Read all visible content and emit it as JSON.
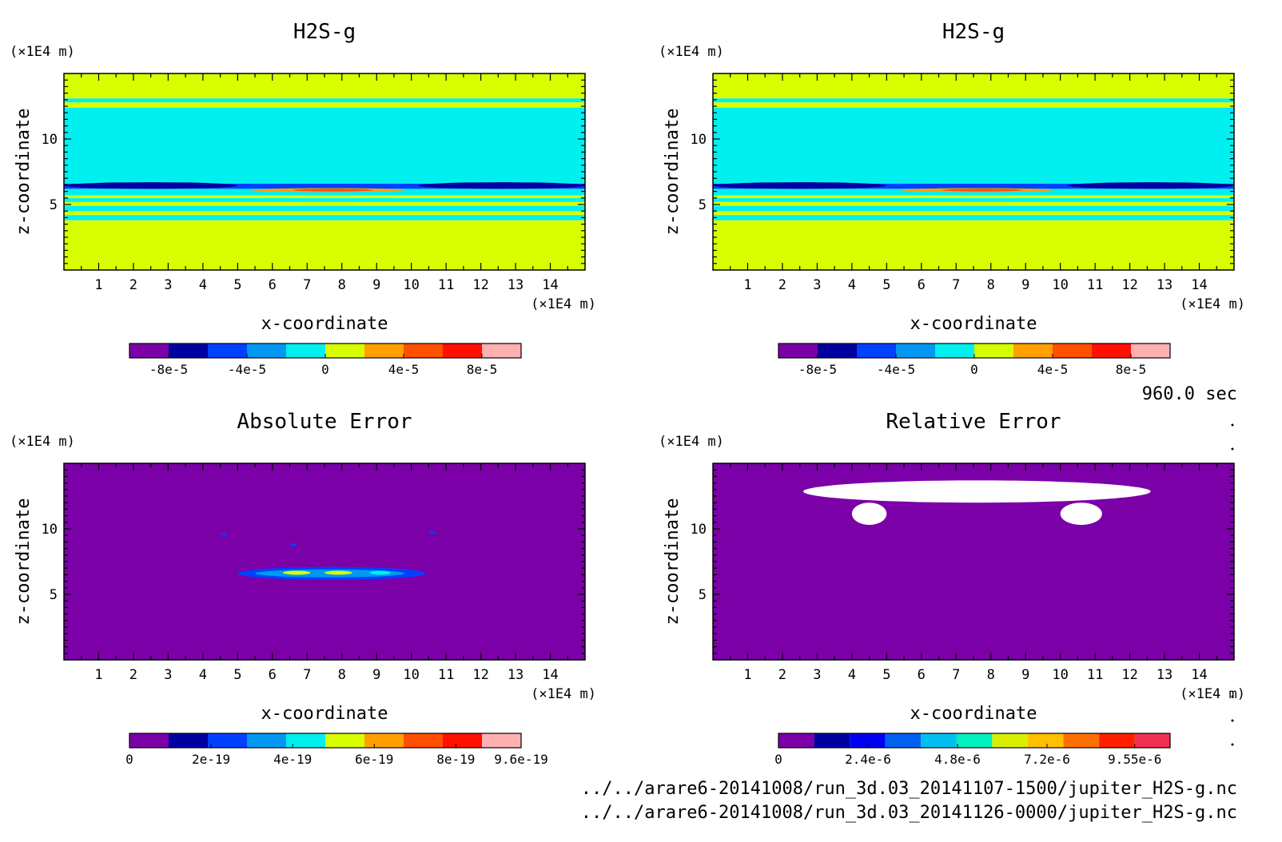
{
  "figure": {
    "time_label": "960.0 sec",
    "files": [
      "../../arare6-20141008/run_3d.03_20141107-1500/jupiter_H2S-g.nc",
      "../../arare6-20141008/run_3d.03_20141126-0000/jupiter_H2S-g.nc"
    ]
  },
  "chart_data": [
    {
      "type": "heatmap",
      "title": "H2S-g",
      "xlabel": "x-coordinate",
      "ylabel": "z-coordinate",
      "x_unit": "(×1E4 m)",
      "y_unit": "(×1E4 m)",
      "xlim": [
        0,
        15
      ],
      "ylim": [
        0,
        15
      ],
      "x_ticks": [
        1,
        2,
        3,
        4,
        5,
        6,
        7,
        8,
        9,
        10,
        11,
        12,
        13,
        14
      ],
      "y_ticks": [
        5,
        10
      ],
      "colorbar": {
        "levels": [
          -0.0001,
          -8e-05,
          -6e-05,
          -4e-05,
          -2e-05,
          0,
          2e-05,
          4e-05,
          6e-05,
          8e-05,
          0.0001
        ],
        "colors": [
          "#7b00a8",
          "#0000a0",
          "#0040ff",
          "#0098f0",
          "#00f0f0",
          "#d8ff00",
          "#ffa000",
          "#ff5000",
          "#ff1000",
          "#ffb0b0"
        ],
        "tick_values": [
          -8e-05,
          -4e-05,
          0,
          4e-05,
          8e-05
        ],
        "tick_labels": [
          "-8e-5",
          "-4e-5",
          "0",
          "4e-5",
          "8e-5"
        ]
      },
      "field_bands": [
        {
          "z": [
            0,
            3.8
          ],
          "value": 1e-05
        },
        {
          "z": [
            3.8,
            4.2
          ],
          "value": -1e-05
        },
        {
          "z": [
            4.2,
            4.5
          ],
          "value": 1e-05
        },
        {
          "z": [
            4.5,
            4.9
          ],
          "value": -1e-05
        },
        {
          "z": [
            4.9,
            5.2
          ],
          "value": 1e-05
        },
        {
          "z": [
            5.2,
            5.5
          ],
          "value": -1e-05
        },
        {
          "z": [
            5.5,
            5.7
          ],
          "value": 1e-05
        },
        {
          "z": [
            5.7,
            6.2
          ],
          "value": -1e-05
        },
        {
          "z": [
            6.2,
            6.6
          ],
          "value": -5e-05
        },
        {
          "z": [
            6.6,
            12.4
          ],
          "value": -1e-05
        },
        {
          "z": [
            12.4,
            12.8
          ],
          "value": 1e-05
        },
        {
          "z": [
            12.8,
            13.1
          ],
          "value": -1e-05
        },
        {
          "z": [
            13.1,
            15
          ],
          "value": 1e-05
        }
      ],
      "field_features": [
        {
          "x": [
            5.4,
            9.8
          ],
          "z": [
            5.95,
            6.25
          ],
          "value": 3e-05
        },
        {
          "x": [
            6.6,
            8.9
          ],
          "z": [
            6.0,
            6.2
          ],
          "value": 5e-05
        },
        {
          "x": [
            0,
            5.0
          ],
          "z": [
            6.2,
            6.7
          ],
          "value": -7e-05
        },
        {
          "x": [
            10.2,
            15
          ],
          "z": [
            6.2,
            6.7
          ],
          "value": -7e-05
        }
      ]
    },
    {
      "type": "heatmap",
      "title": "H2S-g",
      "xlabel": "x-coordinate",
      "ylabel": "z-coordinate",
      "x_unit": "(×1E4 m)",
      "y_unit": "(×1E4 m)",
      "xlim": [
        0,
        15
      ],
      "ylim": [
        0,
        15
      ],
      "x_ticks": [
        1,
        2,
        3,
        4,
        5,
        6,
        7,
        8,
        9,
        10,
        11,
        12,
        13,
        14
      ],
      "y_ticks": [
        5,
        10
      ],
      "colorbar": {
        "levels": [
          -0.0001,
          -8e-05,
          -6e-05,
          -4e-05,
          -2e-05,
          0,
          2e-05,
          4e-05,
          6e-05,
          8e-05,
          0.0001
        ],
        "colors": [
          "#7b00a8",
          "#0000a0",
          "#0040ff",
          "#0098f0",
          "#00f0f0",
          "#d8ff00",
          "#ffa000",
          "#ff5000",
          "#ff1000",
          "#ffb0b0"
        ],
        "tick_values": [
          -8e-05,
          -4e-05,
          0,
          4e-05,
          8e-05
        ],
        "tick_labels": [
          "-8e-5",
          "-4e-5",
          "0",
          "4e-5",
          "8e-5"
        ]
      },
      "field_bands": [
        {
          "z": [
            0,
            3.8
          ],
          "value": 1e-05
        },
        {
          "z": [
            3.8,
            4.2
          ],
          "value": -1e-05
        },
        {
          "z": [
            4.2,
            4.5
          ],
          "value": 1e-05
        },
        {
          "z": [
            4.5,
            4.9
          ],
          "value": -1e-05
        },
        {
          "z": [
            4.9,
            5.2
          ],
          "value": 1e-05
        },
        {
          "z": [
            5.2,
            5.5
          ],
          "value": -1e-05
        },
        {
          "z": [
            5.5,
            5.7
          ],
          "value": 1e-05
        },
        {
          "z": [
            5.7,
            6.2
          ],
          "value": -1e-05
        },
        {
          "z": [
            6.2,
            6.6
          ],
          "value": -5e-05
        },
        {
          "z": [
            6.6,
            12.4
          ],
          "value": -1e-05
        },
        {
          "z": [
            12.4,
            12.8
          ],
          "value": 1e-05
        },
        {
          "z": [
            12.8,
            13.1
          ],
          "value": -1e-05
        },
        {
          "z": [
            13.1,
            15
          ],
          "value": 1e-05
        }
      ],
      "field_features": [
        {
          "x": [
            5.4,
            9.8
          ],
          "z": [
            5.95,
            6.25
          ],
          "value": 3e-05
        },
        {
          "x": [
            6.6,
            8.9
          ],
          "z": [
            6.0,
            6.2
          ],
          "value": 5e-05
        },
        {
          "x": [
            0,
            5.0
          ],
          "z": [
            6.2,
            6.7
          ],
          "value": -7e-05
        },
        {
          "x": [
            10.2,
            15
          ],
          "z": [
            6.2,
            6.7
          ],
          "value": -7e-05
        }
      ]
    },
    {
      "type": "heatmap",
      "title": "Absolute Error",
      "xlabel": "x-coordinate",
      "ylabel": "z-coordinate",
      "x_unit": "(×1E4 m)",
      "y_unit": "(×1E4 m)",
      "xlim": [
        0,
        15
      ],
      "ylim": [
        0,
        15
      ],
      "x_ticks": [
        1,
        2,
        3,
        4,
        5,
        6,
        7,
        8,
        9,
        10,
        11,
        12,
        13,
        14
      ],
      "y_ticks": [
        5,
        10
      ],
      "colorbar": {
        "levels": [
          0,
          9.6e-20,
          1.92e-19,
          2.88e-19,
          3.84e-19,
          4.8e-19,
          5.76e-19,
          6.72e-19,
          7.68e-19,
          8.64e-19,
          9.6e-19
        ],
        "colors": [
          "#7b00a8",
          "#0000a0",
          "#0040ff",
          "#0098f0",
          "#00f0f0",
          "#d8ff00",
          "#ffa000",
          "#ff5000",
          "#ff1000",
          "#ffb0b0"
        ],
        "tick_values": [
          0,
          2e-19,
          4e-19,
          6e-19,
          8e-19,
          9.6e-19
        ],
        "tick_labels": [
          "0",
          "2e-19",
          "4e-19",
          "6e-19",
          "8e-19",
          "9.6e-19"
        ]
      },
      "field_bands": [
        {
          "z": [
            0,
            15
          ],
          "value": 0
        }
      ],
      "field_features": [
        {
          "x": [
            5.0,
            10.4
          ],
          "z": [
            6.1,
            7.1
          ],
          "value": 2.5e-19
        },
        {
          "x": [
            5.5,
            9.8
          ],
          "z": [
            6.3,
            6.9
          ],
          "value": 3.5e-19
        },
        {
          "x": [
            6.3,
            7.1
          ],
          "z": [
            6.5,
            6.8
          ],
          "value": 5e-19
        },
        {
          "x": [
            7.5,
            8.3
          ],
          "z": [
            6.5,
            6.8
          ],
          "value": 5.5e-19
        },
        {
          "x": [
            8.8,
            9.4
          ],
          "z": [
            6.5,
            6.8
          ],
          "value": 4.5e-19
        },
        {
          "x": [
            4.5,
            4.7
          ],
          "z": [
            9.5,
            9.7
          ],
          "value": 2e-19
        },
        {
          "x": [
            6.5,
            6.7
          ],
          "z": [
            8.7,
            8.9
          ],
          "value": 2e-19
        },
        {
          "x": [
            10.5,
            10.7
          ],
          "z": [
            9.6,
            9.8
          ],
          "value": 2e-19
        }
      ]
    },
    {
      "type": "heatmap",
      "title": "Relative Error",
      "xlabel": "x-coordinate",
      "ylabel": "z-coordinate",
      "x_unit": "(×1E4 m)",
      "y_unit": "(×1E4 m)",
      "xlim": [
        0,
        15
      ],
      "ylim": [
        0,
        15
      ],
      "x_ticks": [
        1,
        2,
        3,
        4,
        5,
        6,
        7,
        8,
        9,
        10,
        11,
        12,
        13,
        14
      ],
      "y_ticks": [
        5,
        10
      ],
      "colorbar": {
        "levels": [
          0,
          9.55e-07,
          1.91e-06,
          2.865e-06,
          3.82e-06,
          4.775e-06,
          5.73e-06,
          6.685e-06,
          7.64e-06,
          8.595e-06,
          9.55e-06,
          1.05e-05
        ],
        "colors": [
          "#7b00a8",
          "#0000a0",
          "#0000f0",
          "#0060f0",
          "#00c0f0",
          "#00f0c0",
          "#d8f000",
          "#ffc000",
          "#ff7000",
          "#ff2000",
          "#f03050",
          "#ffb0b0"
        ],
        "tick_values": [
          0,
          2.4e-06,
          4.8e-06,
          7.2e-06,
          9.55e-06
        ],
        "tick_labels": [
          "0",
          "2.4e-6",
          "4.8e-6",
          "7.2e-6",
          "9.55e-6"
        ]
      },
      "field_bands": [
        {
          "z": [
            0,
            15
          ],
          "value": 0
        }
      ],
      "field_features": [
        {
          "x": [
            2.6,
            12.6
          ],
          "z": [
            12.0,
            13.7
          ],
          "value": 2e-05
        },
        {
          "x": [
            4.0,
            5.0
          ],
          "z": [
            10.3,
            12.0
          ],
          "value": 2e-05
        },
        {
          "x": [
            10.0,
            11.2
          ],
          "z": [
            10.3,
            12.0
          ],
          "value": 2e-05
        }
      ]
    }
  ]
}
